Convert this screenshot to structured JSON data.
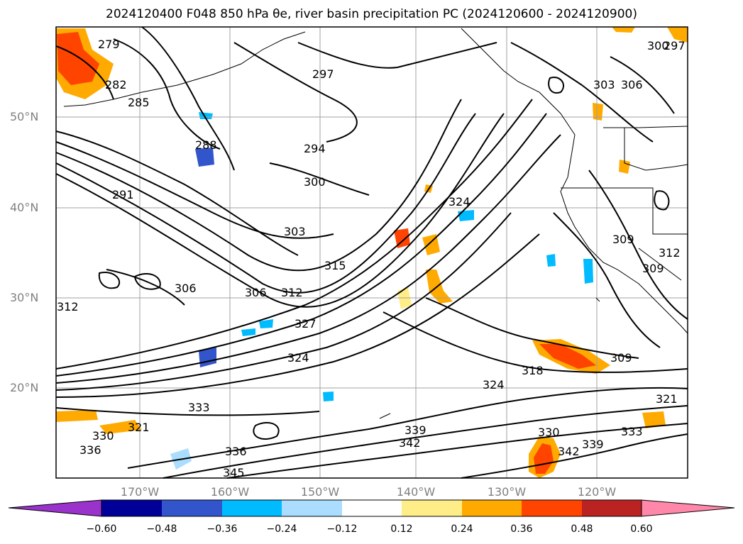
{
  "title": "2024120400 F048 850 hPa θe, river basin precipitation PC (2024120600 - 2024120900)",
  "map": {
    "lat_labels": [
      "50°N",
      "40°N",
      "30°N",
      "20°N"
    ],
    "lon_labels": [
      "170°W",
      "160°W",
      "150°W",
      "140°W",
      "130°W",
      "120°W"
    ],
    "contour_labels": [
      "279",
      "282",
      "285",
      "288",
      "291",
      "294",
      "297",
      "297",
      "300",
      "300",
      "303",
      "303",
      "306",
      "306",
      "306",
      "309",
      "309",
      "309",
      "312",
      "312",
      "312",
      "315",
      "318",
      "321",
      "321",
      "324",
      "324",
      "324",
      "327",
      "330",
      "330",
      "333",
      "333",
      "336",
      "336",
      "339",
      "339",
      "342",
      "342",
      "345"
    ],
    "grid_color": "#a0a0a0",
    "contour_color": "#000000"
  },
  "colorbar": {
    "tick_labels": [
      "−0.60",
      "−0.48",
      "−0.36",
      "−0.24",
      "−0.12",
      "0.12",
      "0.24",
      "0.36",
      "0.48",
      "0.60"
    ],
    "colors": [
      "#9933cc",
      "#000099",
      "#3355cc",
      "#00bbff",
      "#aaddff",
      "#ffffff",
      "#ffee88",
      "#ffaa00",
      "#ff4400",
      "#bb2222",
      "#ff88aa"
    ]
  }
}
